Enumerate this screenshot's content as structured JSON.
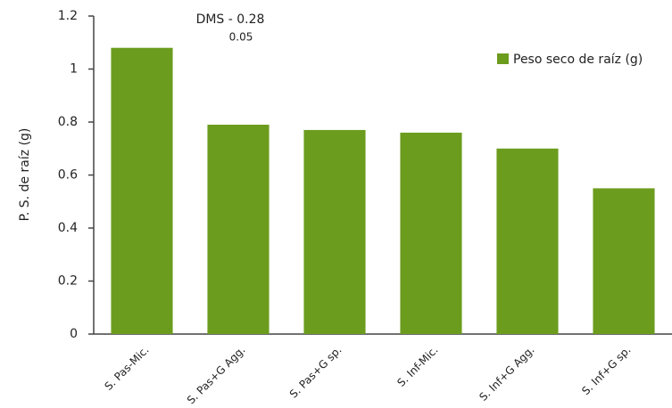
{
  "chart_data": {
    "type": "bar",
    "y_label": "P. S. de raíz (g)",
    "annotation": "DMS - 0.28",
    "annotation_sub": "0.05",
    "categories": [
      "S. Pas-Mic.",
      "S. Pas+G Agg.",
      "S. Pas+G sp.",
      "S. Inf-Mic.",
      "S. Inf+G Agg.",
      "S. Inf+G sp."
    ],
    "series": [
      {
        "name": "Peso seco de raíz (g)",
        "color": "#6c9c1e",
        "values": [
          1.08,
          0.79,
          0.77,
          0.76,
          0.7,
          0.55
        ]
      }
    ],
    "ylim": [
      0,
      1.2
    ],
    "yticks": [
      0,
      0.2,
      0.4,
      0.6,
      0.8,
      1,
      1.2
    ],
    "legend": "upper right"
  }
}
